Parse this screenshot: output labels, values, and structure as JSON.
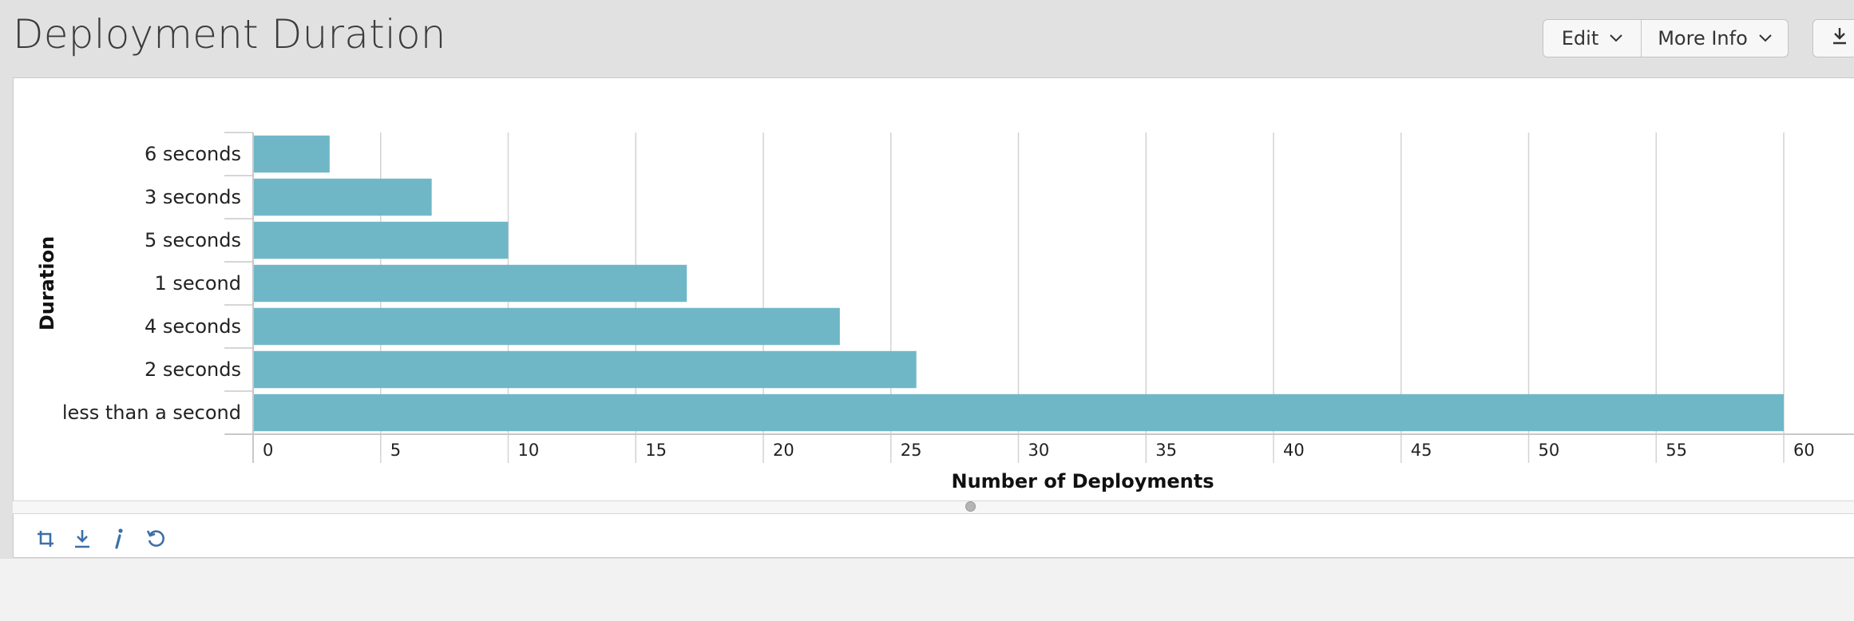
{
  "page": {
    "title": "Deployment Duration"
  },
  "toolbar": {
    "edit_label": "Edit",
    "more_info_label": "More Info",
    "edit_icon": "chevron-down-icon",
    "more_info_icon": "chevron-down-icon",
    "export_icon": "download-icon"
  },
  "footer": {
    "icons": [
      "rotate-icon",
      "download-icon",
      "info-icon",
      "refresh-icon"
    ],
    "icon_color": "#3d6fa8"
  },
  "chart_data": {
    "type": "bar",
    "orientation": "horizontal",
    "categories": [
      "6 seconds",
      "3 seconds",
      "5 seconds",
      "1 second",
      "4 seconds",
      "2 seconds",
      "less than a second"
    ],
    "values": [
      3,
      7,
      10,
      17,
      23,
      26,
      60
    ],
    "xlabel": "Number of Deployments",
    "ylabel": "Duration",
    "xlim": [
      0,
      60
    ],
    "xticks": [
      0,
      5,
      10,
      15,
      20,
      25,
      30,
      35,
      40,
      45,
      50,
      55,
      60
    ],
    "grid": true,
    "legend": false,
    "bar_color": "#6fb7c7"
  }
}
